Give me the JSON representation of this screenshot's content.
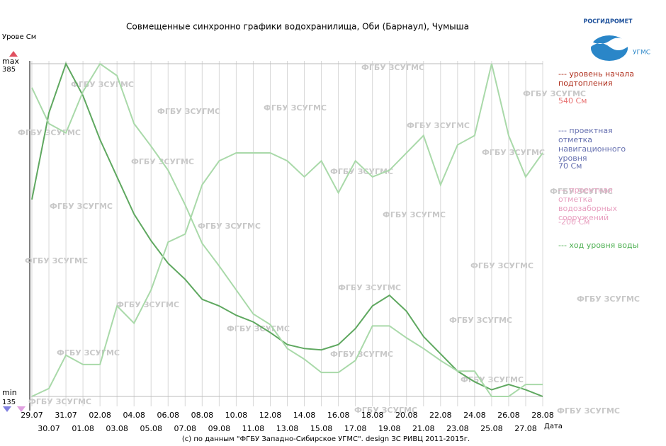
{
  "chart_data": {
    "type": "line",
    "title": "Совмещенные синхронно графики водохранилища, Оби (Барнаул), Чумыша",
    "y_label": "Урове См",
    "x_label": "Дата",
    "categories": [
      "29.07",
      "30.07",
      "31.07",
      "01.08",
      "02.08",
      "03.08",
      "04.08",
      "05.08",
      "06.08",
      "07.08",
      "08.08",
      "09.08",
      "10.08",
      "11.08",
      "12.08",
      "13.08",
      "14.08",
      "15.08",
      "16.08",
      "17.08",
      "18.08",
      "19.08",
      "20.08",
      "21.08",
      "22.08",
      "23.08",
      "24.08",
      "25.08",
      "26.08",
      "27.08",
      "28.08"
    ],
    "series": [
      {
        "color": "#5fa860",
        "values": [
          283,
          348,
          385,
          361,
          328,
          300,
          272,
          252,
          235,
          223,
          208,
          203,
          196,
          191,
          183,
          174,
          171,
          170,
          174,
          186,
          203,
          211,
          199,
          180,
          167,
          154,
          146,
          140,
          144,
          140,
          135
        ]
      },
      {
        "color": "#a9d9a9",
        "values": [
          367,
          340,
          333,
          364,
          385,
          376,
          340,
          323,
          305,
          279,
          250,
          233,
          215,
          197,
          189,
          171,
          163,
          153,
          153,
          162,
          188,
          188,
          179,
          171,
          162,
          154,
          154,
          135,
          135,
          144,
          144
        ]
      },
      {
        "color": "#a9d9a9",
        "values": [
          135,
          141,
          166,
          159,
          159,
          203,
          190,
          215,
          251,
          257,
          294,
          312,
          318,
          318,
          318,
          312,
          300,
          312,
          288,
          312,
          300,
          305,
          318,
          331,
          294,
          324,
          331,
          385,
          331,
          300,
          318
        ]
      }
    ],
    "ylim": [
      135,
      385
    ],
    "yticks": [
      {
        "value": 385,
        "label": "max"
      },
      {
        "value": 135,
        "label": "min"
      }
    ],
    "y_end_labels": {
      "max": "385",
      "min": "135"
    },
    "grid": true,
    "legend": [
      {
        "text": "--- уровень начала подтопления",
        "color": "#b0301e"
      },
      {
        "text": "540 См",
        "color": "#e87070"
      },
      {
        "text": "--- проектная отметка навигационного уровня",
        "color": "#6670b0"
      },
      {
        "text": "70 См",
        "color": "#6670b0"
      },
      {
        "text": "--- проектная отметка водозаборных сооружений",
        "color": "#e8a0c0"
      },
      {
        "text": "-200 См",
        "color": "#e8a0c0"
      },
      {
        "text": "--- ход уровня воды",
        "color": "#4caf50"
      }
    ],
    "watermark": "ФГБУ ЗСУГМС",
    "logo_top": "РОСГИДРОМЕТ",
    "logo_side": "УГМС",
    "footer": "(с) по данным \"ФГБУ Западно-Сибирское УГМС\". design ЗС РИВЦ 2011-2015г."
  }
}
